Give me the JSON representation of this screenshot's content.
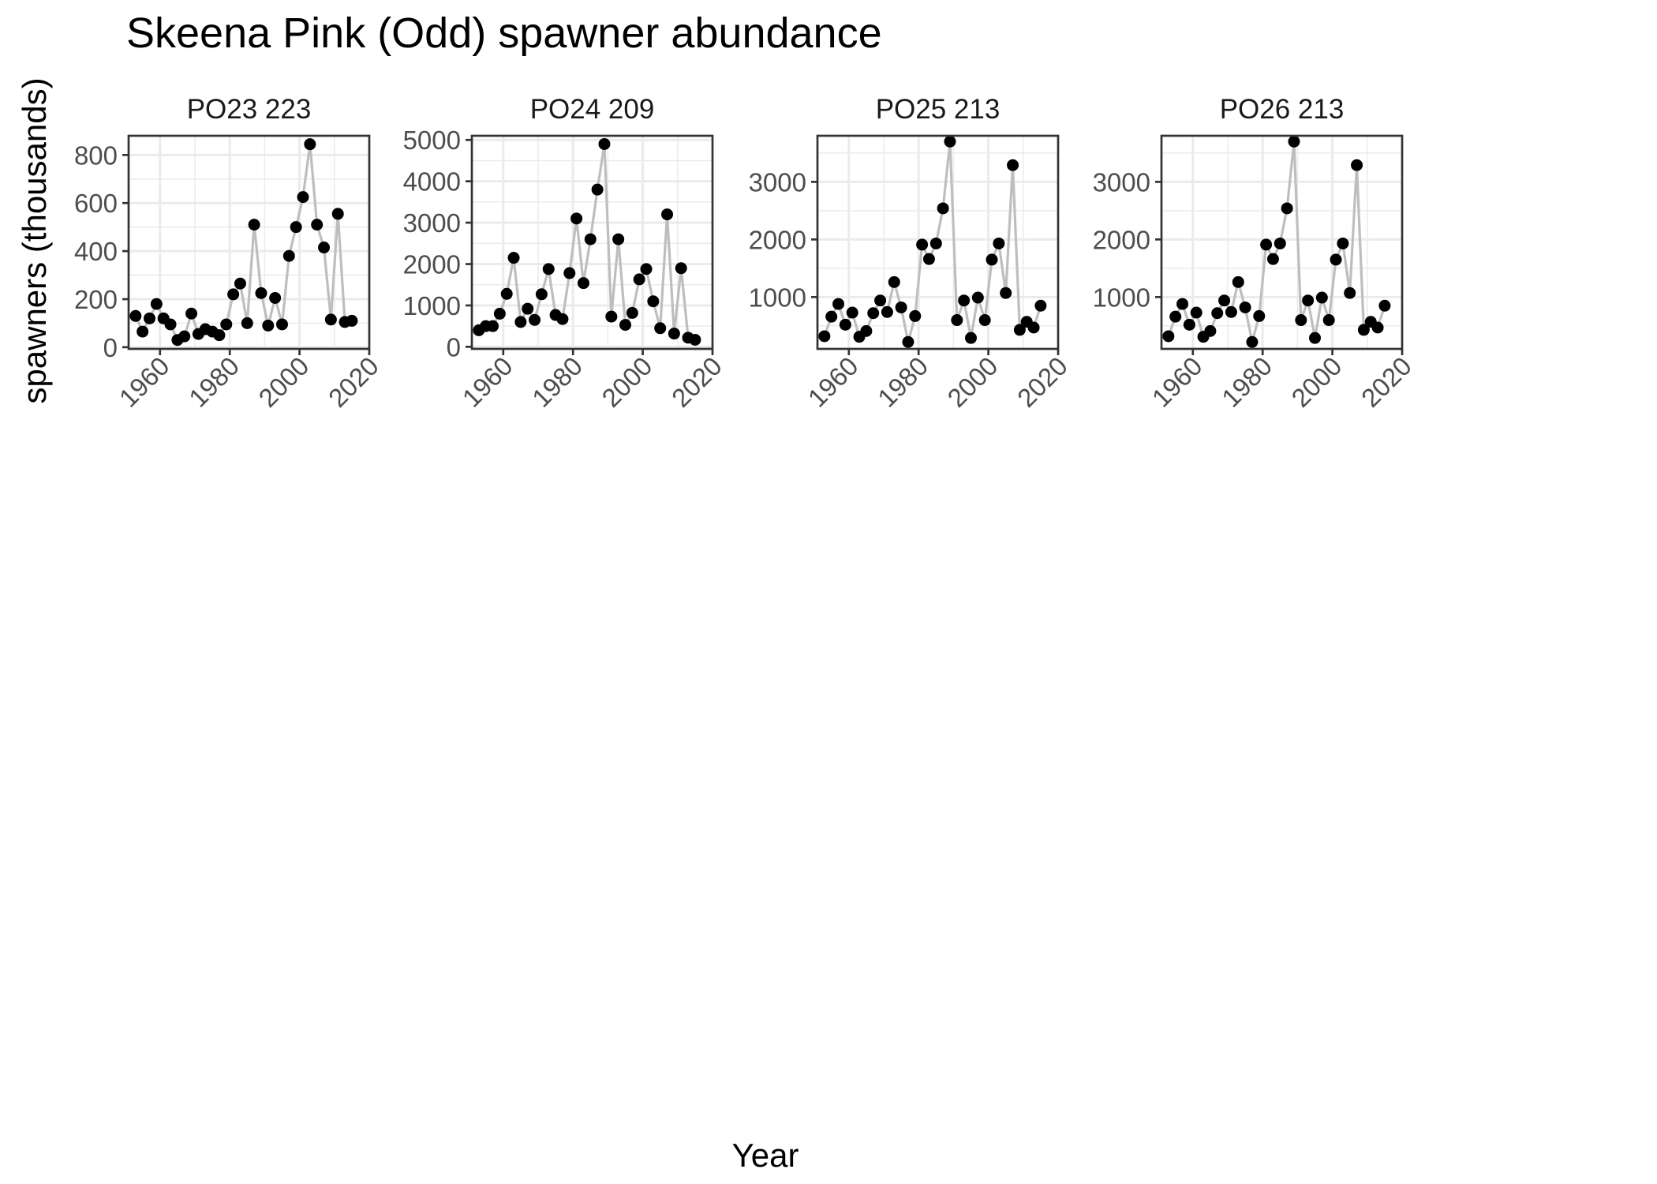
{
  "chart_data": {
    "type": "line",
    "title": "Skeena Pink (Odd) spawner abundance",
    "xlabel": "Year",
    "ylabel": "spawners (thousands)",
    "line_color": "#bebebe",
    "point_color": "#000000",
    "grid": true,
    "legend": "none",
    "x": [
      1953,
      1955,
      1957,
      1959,
      1961,
      1963,
      1965,
      1967,
      1969,
      1971,
      1973,
      1975,
      1977,
      1979,
      1981,
      1983,
      1985,
      1987,
      1989,
      1991,
      1993,
      1995,
      1997,
      1999,
      2001,
      2003,
      2005,
      2007,
      2009,
      2011,
      2013,
      2015
    ],
    "panels": [
      {
        "name": "PO23 223",
        "xlim": [
          1951,
          2020
        ],
        "ylim": [
          -7,
          880
        ],
        "xticks": [
          1960,
          1980,
          2000,
          2020
        ],
        "yticks": [
          0,
          200,
          400,
          600,
          800
        ],
        "values": [
          130,
          65,
          120,
          180,
          120,
          95,
          30,
          45,
          140,
          55,
          75,
          65,
          50,
          95,
          220,
          265,
          100,
          510,
          225,
          90,
          205,
          95,
          380,
          500,
          625,
          845,
          510,
          415,
          115,
          555,
          105,
          110
        ]
      },
      {
        "name": "PO24 209",
        "xlim": [
          1951,
          2020
        ],
        "ylim": [
          -50,
          5100
        ],
        "xticks": [
          1960,
          1980,
          2000,
          2020
        ],
        "yticks": [
          0,
          1000,
          2000,
          3000,
          4000,
          5000
        ],
        "values": [
          400,
          500,
          500,
          800,
          1280,
          2150,
          600,
          920,
          650,
          1270,
          1880,
          770,
          670,
          1780,
          3100,
          1540,
          2600,
          3800,
          4900,
          730,
          2600,
          530,
          820,
          1630,
          1880,
          1100,
          450,
          3200,
          320,
          1900,
          220,
          170
        ]
      },
      {
        "name": "PO25 213",
        "xlim": [
          1951,
          2020
        ],
        "ylim": [
          100,
          3800
        ],
        "xticks": [
          1960,
          1980,
          2000,
          2020
        ],
        "yticks": [
          1000,
          2000,
          3000
        ],
        "values": [
          320,
          660,
          880,
          520,
          730,
          310,
          410,
          720,
          940,
          740,
          1260,
          820,
          220,
          670,
          1910,
          1660,
          1930,
          2540,
          3700,
          600,
          940,
          290,
          990,
          600,
          1650,
          1930,
          1070,
          3290,
          430,
          570,
          470,
          850
        ]
      },
      {
        "name": "PO26 213",
        "xlim": [
          1951,
          2020
        ],
        "ylim": [
          100,
          3800
        ],
        "xticks": [
          1960,
          1980,
          2000,
          2020
        ],
        "yticks": [
          1000,
          2000,
          3000
        ],
        "values": [
          320,
          660,
          880,
          520,
          730,
          310,
          410,
          720,
          940,
          740,
          1260,
          820,
          220,
          670,
          1910,
          1660,
          1930,
          2540,
          3700,
          600,
          940,
          290,
          990,
          600,
          1650,
          1930,
          1070,
          3290,
          430,
          570,
          470,
          850
        ]
      }
    ]
  }
}
